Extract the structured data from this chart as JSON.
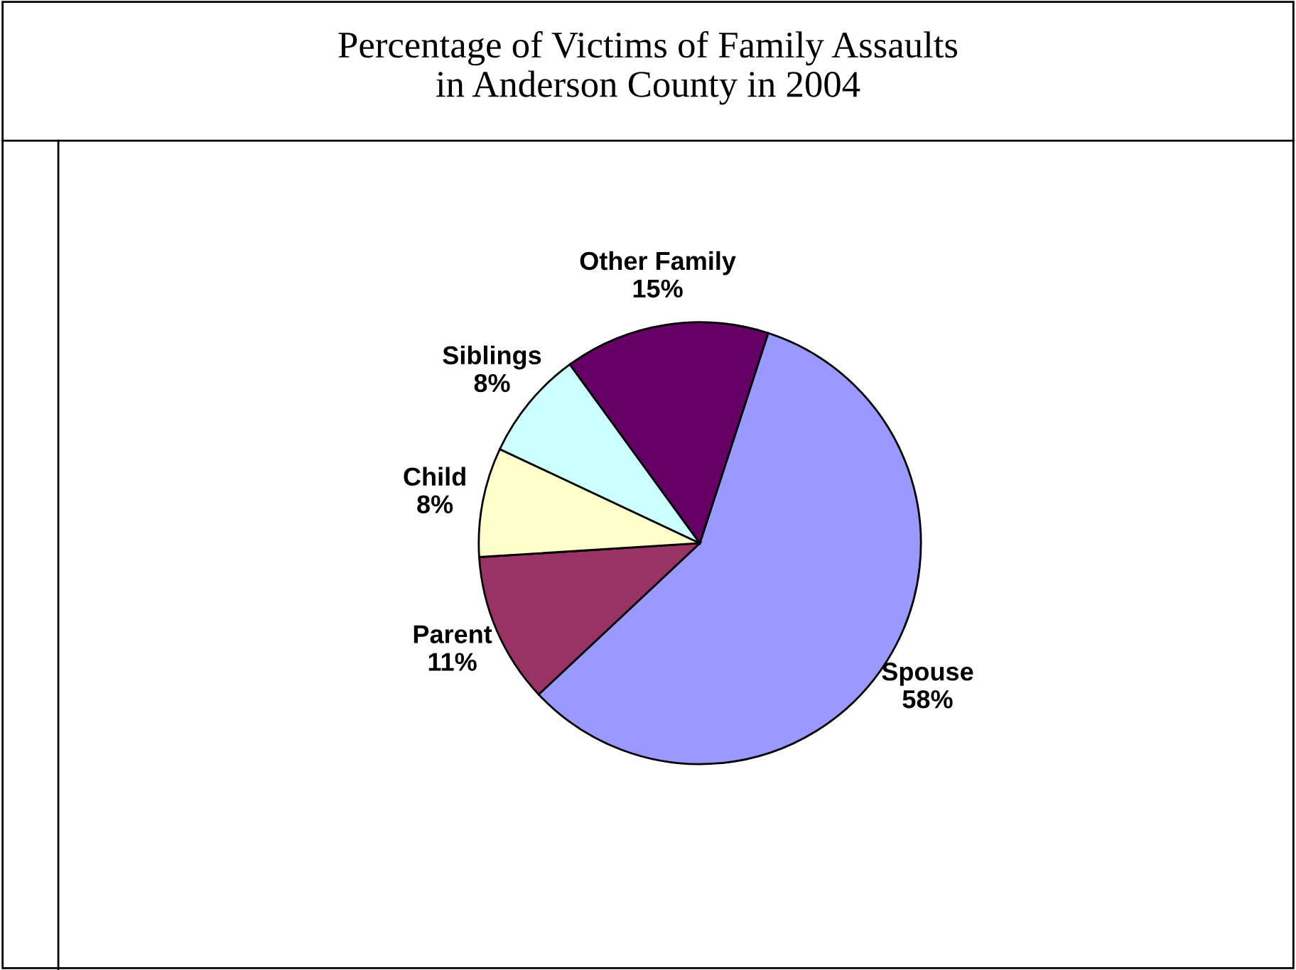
{
  "chart_data": {
    "type": "pie",
    "title": "Percentage of Victims of Family Assaults\nin Anderson County in 2004",
    "categories": [
      "Spouse",
      "Parent",
      "Child",
      "Siblings",
      "Other Family"
    ],
    "values": [
      58,
      11,
      8,
      8,
      15
    ],
    "value_labels": [
      "58%",
      "11%",
      "8%",
      "8%",
      "15%"
    ],
    "colors": [
      "#9999ff",
      "#993366",
      "#ffffcc",
      "#ccffff",
      "#660066"
    ]
  }
}
